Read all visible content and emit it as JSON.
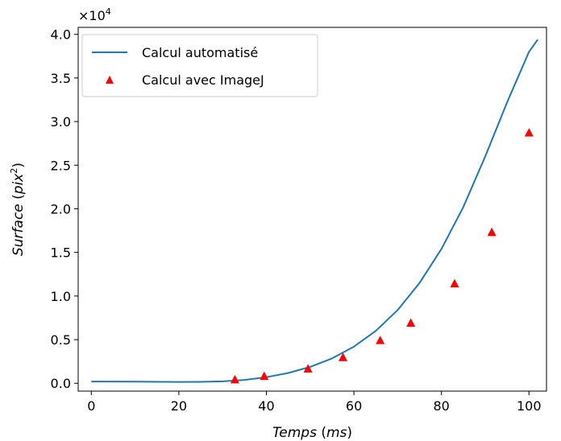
{
  "chart_data": {
    "type": "line",
    "xlabel_main": "Temps",
    "xlabel_unit": "ms",
    "ylabel_main": "Surface",
    "ylabel_unit_base": "pix",
    "ylabel_unit_exp": "2",
    "y_multiplier_base": "×10",
    "y_multiplier_exp": "4",
    "xlim": [
      -3,
      104
    ],
    "ylim": [
      -0.09,
      4.08
    ],
    "xticks": [
      0,
      20,
      40,
      60,
      80,
      100
    ],
    "xtick_labels": [
      "0",
      "20",
      "40",
      "60",
      "80",
      "100"
    ],
    "yticks": [
      0.0,
      0.5,
      1.0,
      1.5,
      2.0,
      2.5,
      3.0,
      3.5,
      4.0
    ],
    "ytick_labels": [
      "0.0",
      "0.5",
      "1.0",
      "1.5",
      "2.0",
      "2.5",
      "3.0",
      "3.5",
      "4.0"
    ],
    "grid": false,
    "legend_position": "top-left",
    "series": [
      {
        "name": "Calcul automatisé",
        "kind": "line",
        "color": "#1f77b4",
        "x": [
          0,
          10,
          20,
          25,
          30,
          35,
          40,
          45,
          50,
          55,
          60,
          65,
          70,
          75,
          80,
          85,
          90,
          95,
          100,
          102
        ],
        "y": [
          0.02,
          0.018,
          0.015,
          0.016,
          0.022,
          0.038,
          0.07,
          0.118,
          0.188,
          0.285,
          0.42,
          0.6,
          0.84,
          1.15,
          1.54,
          2.02,
          2.6,
          3.22,
          3.8,
          3.94
        ]
      },
      {
        "name": "Calcul avec ImageJ",
        "kind": "scatter",
        "marker": "triangle",
        "color": "#ff0000",
        "x": [
          32.8,
          39.5,
          49.5,
          57.5,
          66.0,
          73.0,
          83.0,
          91.5,
          100.0
        ],
        "y": [
          0.04,
          0.08,
          0.165,
          0.295,
          0.49,
          0.69,
          1.14,
          1.73,
          2.87
        ]
      }
    ]
  }
}
